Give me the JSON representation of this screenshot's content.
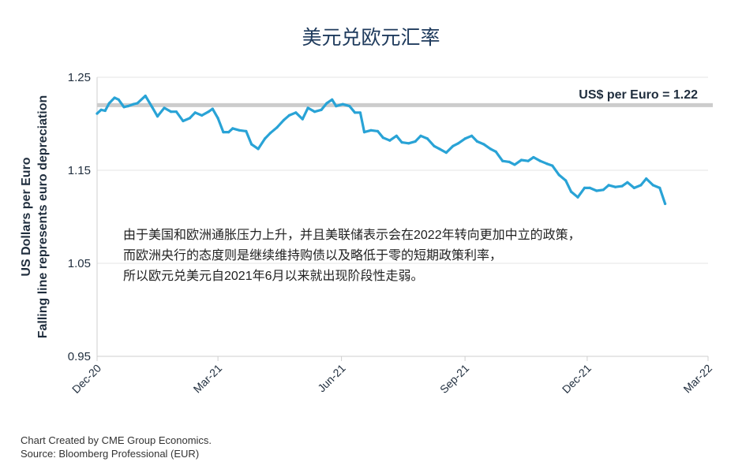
{
  "chart_data": {
    "type": "line",
    "title": "美元兑欧元汇率",
    "ylabel_line1": "US Dollars per Euro",
    "ylabel_line2": "Falling line represents euro depreciation",
    "ylim": [
      0.95,
      1.25
    ],
    "y_ticks": [
      "1.25",
      "1.15",
      "1.05",
      "0.95"
    ],
    "y_tick_values": [
      1.25,
      1.15,
      1.05,
      0.95
    ],
    "x_tick_labels": [
      "Dec-20",
      "Mar-21",
      "Jun-21",
      "Sep-21",
      "Dec-21",
      "Mar-22"
    ],
    "x_tick_dates": [
      "2020-12-01",
      "2021-03-01",
      "2021-06-01",
      "2021-09-01",
      "2021-12-01",
      "2022-03-01"
    ],
    "xlim": [
      "2020-12-01",
      "2022-03-01"
    ],
    "grid": true,
    "reference_line": {
      "value": 1.22,
      "label": "US$ per Euro = 1.22",
      "color": "#cccccc"
    },
    "line_color": "#29a3d6",
    "series": [
      {
        "x": [
          "2020-12-01",
          "2020-12-04",
          "2020-12-07",
          "2020-12-10",
          "2020-12-14",
          "2020-12-17",
          "2020-12-21",
          "2020-12-24",
          "2020-12-28",
          "2020-12-31",
          "2021-01-06",
          "2021-01-11",
          "2021-01-15",
          "2021-01-20",
          "2021-01-25",
          "2021-01-29",
          "2021-02-03",
          "2021-02-08",
          "2021-02-12",
          "2021-02-17",
          "2021-02-22",
          "2021-02-25",
          "2021-03-01",
          "2021-03-05",
          "2021-03-09",
          "2021-03-12",
          "2021-03-17",
          "2021-03-22",
          "2021-03-26",
          "2021-03-31",
          "2021-04-05",
          "2021-04-09",
          "2021-04-14",
          "2021-04-19",
          "2021-04-23",
          "2021-04-28",
          "2021-05-03",
          "2021-05-07",
          "2021-05-12",
          "2021-05-17",
          "2021-05-21",
          "2021-05-25",
          "2021-05-28",
          "2021-06-02",
          "2021-06-07",
          "2021-06-11",
          "2021-06-15",
          "2021-06-18",
          "2021-06-23",
          "2021-06-28",
          "2021-07-02",
          "2021-07-07",
          "2021-07-12",
          "2021-07-16",
          "2021-07-21",
          "2021-07-26",
          "2021-07-30",
          "2021-08-04",
          "2021-08-09",
          "2021-08-13",
          "2021-08-18",
          "2021-08-23",
          "2021-08-27",
          "2021-09-01",
          "2021-09-06",
          "2021-09-10",
          "2021-09-15",
          "2021-09-20",
          "2021-09-24",
          "2021-09-29",
          "2021-10-04",
          "2021-10-08",
          "2021-10-13",
          "2021-10-18",
          "2021-10-22",
          "2021-10-27",
          "2021-11-01",
          "2021-11-05",
          "2021-11-10",
          "2021-11-15",
          "2021-11-19",
          "2021-11-24",
          "2021-11-29",
          "2021-12-03",
          "2021-12-08",
          "2021-12-13",
          "2021-12-17",
          "2021-12-22",
          "2021-12-27",
          "2021-12-31",
          "2022-01-05",
          "2022-01-10",
          "2022-01-14",
          "2022-01-19",
          "2022-01-24",
          "2022-01-28"
        ],
        "values": [
          1.211,
          1.215,
          1.214,
          1.222,
          1.228,
          1.226,
          1.218,
          1.219,
          1.221,
          1.222,
          1.23,
          1.218,
          1.208,
          1.217,
          1.213,
          1.213,
          1.203,
          1.206,
          1.212,
          1.209,
          1.213,
          1.216,
          1.206,
          1.191,
          1.191,
          1.195,
          1.193,
          1.192,
          1.178,
          1.173,
          1.184,
          1.19,
          1.196,
          1.204,
          1.209,
          1.212,
          1.205,
          1.217,
          1.213,
          1.215,
          1.222,
          1.226,
          1.219,
          1.221,
          1.219,
          1.212,
          1.212,
          1.191,
          1.193,
          1.192,
          1.185,
          1.182,
          1.187,
          1.18,
          1.179,
          1.181,
          1.187,
          1.184,
          1.176,
          1.173,
          1.169,
          1.176,
          1.179,
          1.184,
          1.187,
          1.181,
          1.178,
          1.173,
          1.17,
          1.16,
          1.159,
          1.156,
          1.161,
          1.16,
          1.164,
          1.16,
          1.157,
          1.155,
          1.145,
          1.139,
          1.127,
          1.121,
          1.131,
          1.131,
          1.128,
          1.129,
          1.134,
          1.132,
          1.133,
          1.137,
          1.131,
          1.134,
          1.141,
          1.134,
          1.131,
          1.114
        ]
      }
    ],
    "annotation_lines": [
      "由于美国和欧洲通胀压力上升，并且美联储表示会在2022年转向更加中立的政策，",
      "而欧洲央行的态度则是继续维持购债以及略低于零的短期政策利率，",
      "所以欧元兑美元自2021年6月以来就出现阶段性走弱。"
    ]
  },
  "credits": {
    "line1": "Chart Created by CME Group Economics.",
    "line2": "Source:  Bloomberg Professional (EUR)"
  }
}
